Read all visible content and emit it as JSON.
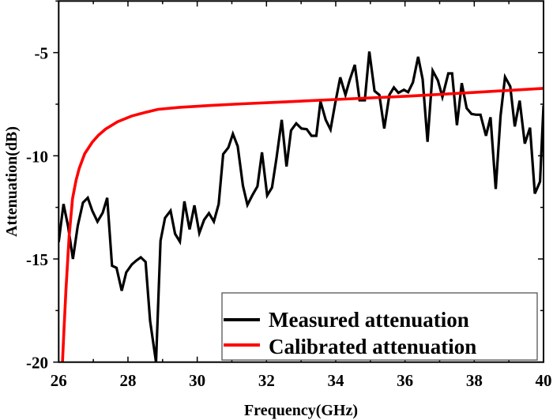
{
  "chart_data": {
    "type": "line",
    "title": "",
    "xlabel": "Frequency(GHz)",
    "ylabel": "Attenuation(dB)",
    "xlim": [
      26,
      40
    ],
    "ylim": [
      -20,
      -2.5
    ],
    "xticks": [
      26,
      28,
      30,
      32,
      34,
      36,
      38,
      40
    ],
    "yticks": [
      -5,
      -10,
      -15,
      -20
    ],
    "xtick_labels": [
      "26",
      "28",
      "30",
      "32",
      "34",
      "36",
      "38",
      "40"
    ],
    "ytick_labels": [
      "-5",
      "-10",
      "-15",
      "-20"
    ],
    "grid": false,
    "legend_position": "bottom-right",
    "series": [
      {
        "name": "Measured attenuation",
        "color": "#000000",
        "x": [
          26.0,
          26.14,
          26.27,
          26.41,
          26.55,
          26.7,
          26.84,
          26.97,
          27.12,
          27.27,
          27.4,
          27.54,
          27.67,
          27.82,
          27.95,
          28.11,
          28.24,
          28.37,
          28.51,
          28.64,
          28.81,
          28.94,
          29.07,
          29.23,
          29.36,
          29.5,
          29.63,
          29.78,
          29.92,
          30.06,
          30.2,
          30.34,
          30.48,
          30.62,
          30.75,
          30.9,
          31.03,
          31.17,
          31.32,
          31.45,
          31.6,
          31.74,
          31.87,
          32.02,
          32.16,
          32.29,
          32.44,
          32.58,
          32.71,
          32.86,
          33.01,
          33.16,
          33.3,
          33.44,
          33.56,
          33.71,
          33.85,
          33.98,
          34.13,
          34.28,
          34.4,
          34.55,
          34.69,
          34.84,
          34.97,
          35.12,
          35.26,
          35.4,
          35.55,
          35.68,
          35.81,
          35.97,
          36.09,
          36.23,
          36.38,
          36.51,
          36.65,
          36.8,
          36.95,
          37.08,
          37.25,
          37.36,
          37.5,
          37.64,
          37.78,
          37.92,
          38.05,
          38.18,
          38.34,
          38.47,
          38.62,
          38.76,
          38.89,
          39.04,
          39.17,
          39.31,
          39.46,
          39.61,
          39.75,
          39.9,
          40.0
        ],
        "y": [
          -14.18,
          -12.34,
          -13.4,
          -15.0,
          -13.4,
          -12.27,
          -12.04,
          -12.66,
          -13.19,
          -12.76,
          -12.04,
          -15.33,
          -15.43,
          -16.54,
          -15.65,
          -15.27,
          -15.08,
          -14.92,
          -15.14,
          -18.0,
          -20.0,
          -14.12,
          -13.01,
          -12.66,
          -13.78,
          -14.16,
          -12.21,
          -13.57,
          -12.4,
          -13.74,
          -13.1,
          -12.78,
          -13.19,
          -12.34,
          -9.92,
          -9.6,
          -8.94,
          -9.54,
          -11.45,
          -12.38,
          -11.89,
          -11.48,
          -9.83,
          -11.92,
          -11.54,
          -10.11,
          -8.26,
          -10.52,
          -8.77,
          -8.43,
          -8.68,
          -8.71,
          -9.03,
          -9.03,
          -7.37,
          -8.26,
          -8.73,
          -7.5,
          -6.2,
          -7.05,
          -6.35,
          -5.59,
          -7.31,
          -7.31,
          -4.95,
          -6.86,
          -7.05,
          -8.68,
          -7.05,
          -6.69,
          -6.95,
          -6.8,
          -6.92,
          -6.44,
          -5.2,
          -6.29,
          -9.32,
          -5.88,
          -6.35,
          -7.15,
          -6.01,
          -6.01,
          -8.52,
          -6.48,
          -7.69,
          -7.97,
          -8.01,
          -8.01,
          -9.03,
          -8.13,
          -11.61,
          -8.07,
          -6.18,
          -6.64,
          -8.58,
          -7.33,
          -9.41,
          -8.64,
          -11.83,
          -11.25,
          -7.56
        ]
      },
      {
        "name": "Calibrated attenuation",
        "color": "#ff0000",
        "x": [
          26.11,
          26.15,
          26.21,
          26.3,
          26.4,
          26.5,
          26.59,
          26.75,
          26.97,
          27.15,
          27.35,
          27.7,
          28.11,
          28.5,
          28.87,
          29.5,
          30.39,
          31.3,
          32.29,
          34.0,
          36.09,
          38.0,
          40.0
        ],
        "y": [
          -20.0,
          -18.5,
          -16.48,
          -13.9,
          -12.08,
          -11.2,
          -10.62,
          -9.9,
          -9.34,
          -9.0,
          -8.71,
          -8.35,
          -8.07,
          -7.9,
          -7.75,
          -7.65,
          -7.56,
          -7.48,
          -7.41,
          -7.27,
          -7.11,
          -6.93,
          -6.73
        ]
      }
    ]
  }
}
